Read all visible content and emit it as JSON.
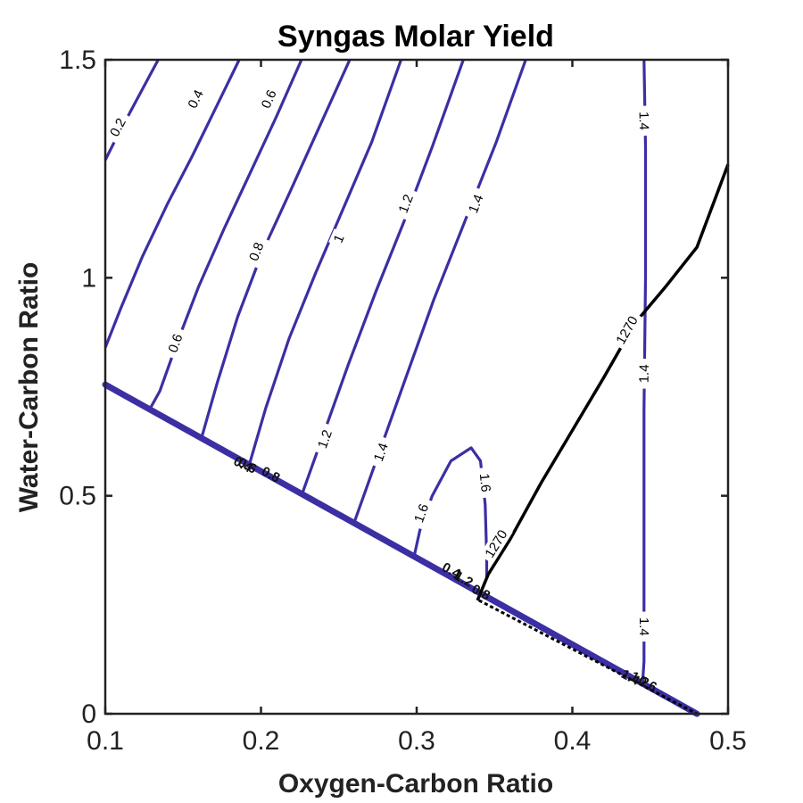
{
  "chart_data": {
    "type": "contour",
    "title": "Syngas Molar Yield",
    "xlabel": "Oxygen-Carbon Ratio",
    "ylabel": "Water-Carbon Ratio",
    "xlim": [
      0.1,
      0.5
    ],
    "ylim": [
      0,
      1.5
    ],
    "xticks": [
      "0.1",
      "0.2",
      "0.3",
      "0.4",
      "0.5"
    ],
    "yticks": [
      "0",
      "0.5",
      "1",
      "1.5"
    ],
    "grid": false,
    "colors": {
      "contour": "#3b2fa3",
      "temperature_line": "#000000",
      "axes": "#222222"
    },
    "feasibility_boundary": {
      "x": [
        0.1,
        0.48
      ],
      "y": [
        0.755,
        0.0
      ]
    },
    "contours": [
      {
        "level": "0.2",
        "points": [
          [
            0.1,
            1.27
          ],
          [
            0.107,
            1.32
          ],
          [
            0.116,
            1.38
          ],
          [
            0.125,
            1.44
          ],
          [
            0.134,
            1.5
          ]
        ],
        "labels": [
          [
            0.108,
            1.345
          ]
        ]
      },
      {
        "level": "0.4",
        "points": [
          [
            0.1,
            0.84
          ],
          [
            0.11,
            0.93
          ],
          [
            0.124,
            1.05
          ],
          [
            0.14,
            1.17
          ],
          [
            0.156,
            1.28
          ],
          [
            0.171,
            1.39
          ],
          [
            0.186,
            1.5
          ]
        ],
        "labels": [
          [
            0.158,
            1.41
          ]
        ]
      },
      {
        "level": "0.6",
        "points": [
          [
            0.128,
            0.695
          ],
          [
            0.135,
            0.74
          ],
          [
            0.146,
            0.85
          ],
          [
            0.16,
            0.98
          ],
          [
            0.176,
            1.11
          ],
          [
            0.193,
            1.24
          ],
          [
            0.21,
            1.37
          ],
          [
            0.226,
            1.5
          ]
        ],
        "labels": [
          [
            0.145,
            0.85
          ],
          [
            0.205,
            1.41
          ]
        ]
      },
      {
        "level": "0.8",
        "points": [
          [
            0.162,
            0.635
          ],
          [
            0.172,
            0.76
          ],
          [
            0.185,
            0.91
          ],
          [
            0.201,
            1.06
          ],
          [
            0.219,
            1.2
          ],
          [
            0.238,
            1.35
          ],
          [
            0.257,
            1.5
          ]
        ],
        "labels": [
          [
            0.197,
            1.06
          ]
        ]
      },
      {
        "level": "1",
        "points": [
          [
            0.192,
            0.565
          ],
          [
            0.203,
            0.7
          ],
          [
            0.218,
            0.86
          ],
          [
            0.235,
            1.01
          ],
          [
            0.253,
            1.16
          ],
          [
            0.271,
            1.31
          ],
          [
            0.29,
            1.5
          ]
        ],
        "labels": [
          [
            0.25,
            1.09
          ]
        ]
      },
      {
        "level": "1.2",
        "points": [
          [
            0.227,
            0.51
          ],
          [
            0.24,
            0.64
          ],
          [
            0.256,
            0.8
          ],
          [
            0.274,
            0.97
          ],
          [
            0.292,
            1.13
          ],
          [
            0.31,
            1.3
          ],
          [
            0.33,
            1.5
          ]
        ],
        "labels": [
          [
            0.241,
            0.63
          ],
          [
            0.293,
            1.17
          ]
        ]
      },
      {
        "level": "1.4",
        "points": [
          [
            0.26,
            0.44
          ],
          [
            0.274,
            0.58
          ],
          [
            0.292,
            0.76
          ],
          [
            0.311,
            0.95
          ],
          [
            0.331,
            1.13
          ],
          [
            0.351,
            1.31
          ],
          [
            0.37,
            1.5
          ]
        ],
        "labels": [
          [
            0.277,
            0.6
          ],
          [
            0.338,
            1.17
          ]
        ]
      },
      {
        "level": "1.6",
        "points": [
          [
            0.298,
            0.355
          ],
          [
            0.302,
            0.42
          ],
          [
            0.31,
            0.5
          ],
          [
            0.322,
            0.58
          ],
          [
            0.335,
            0.61
          ],
          [
            0.341,
            0.58
          ],
          [
            0.344,
            0.48
          ],
          [
            0.345,
            0.36
          ],
          [
            0.345,
            0.31
          ]
        ],
        "labels": [
          [
            0.303,
            0.46
          ],
          [
            0.344,
            0.53
          ]
        ]
      },
      {
        "level": "1.4",
        "points": [
          [
            0.446,
            1.5
          ],
          [
            0.447,
            1.3
          ],
          [
            0.447,
            1.0
          ],
          [
            0.446,
            0.7
          ],
          [
            0.446,
            0.4
          ],
          [
            0.446,
            0.12
          ],
          [
            0.445,
            0.065
          ]
        ],
        "labels": [
          [
            0.446,
            1.36
          ],
          [
            0.446,
            0.78
          ],
          [
            0.446,
            0.2
          ]
        ]
      }
    ],
    "temperature_line": {
      "level": "1270",
      "points": [
        [
          0.339,
          0.26
        ],
        [
          0.346,
          0.32
        ],
        [
          0.36,
          0.4
        ],
        [
          0.38,
          0.53
        ],
        [
          0.4,
          0.65
        ],
        [
          0.42,
          0.77
        ],
        [
          0.44,
          0.895
        ],
        [
          0.46,
          0.98
        ],
        [
          0.48,
          1.07
        ],
        [
          0.5,
          1.26
        ]
      ],
      "labels": [
        [
          0.351,
          0.39
        ],
        [
          0.435,
          0.88
        ]
      ]
    },
    "boundary_label_clusters": [
      {
        "text": "0.8",
        "x": 0.205,
        "y": 0.54
      },
      {
        "text": "0.4",
        "x": 0.187,
        "y": 0.563
      },
      {
        "text": "0.6",
        "x": 0.19,
        "y": 0.56
      },
      {
        "text": "0.4",
        "x": 0.321,
        "y": 0.32
      },
      {
        "text": "1",
        "x": 0.325,
        "y": 0.31
      },
      {
        "text": "1.2",
        "x": 0.329,
        "y": 0.3
      },
      {
        "text": "0.8",
        "x": 0.34,
        "y": 0.27
      },
      {
        "text": "1.4",
        "x": 0.436,
        "y": 0.075
      },
      {
        "text": "1.2",
        "x": 0.442,
        "y": 0.07
      },
      {
        "text": "0.6",
        "x": 0.447,
        "y": 0.06
      }
    ]
  }
}
